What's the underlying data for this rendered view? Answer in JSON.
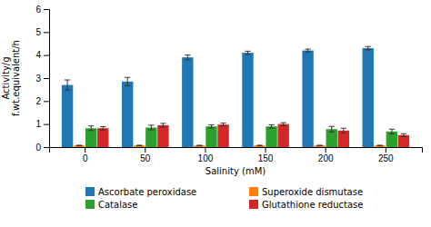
{
  "chart_data": {
    "type": "bar",
    "xlabel": "Salinity (mM)",
    "ylabel": "Activity/g\nf.wt.equivalent/h",
    "categories": [
      "0",
      "50",
      "100",
      "150",
      "200",
      "250"
    ],
    "series": [
      {
        "name": "Ascorbate peroxidase",
        "values": [
          2.7,
          2.85,
          3.9,
          4.1,
          4.2,
          4.3
        ],
        "errors": [
          0.22,
          0.18,
          0.1,
          0.07,
          0.06,
          0.07
        ]
      },
      {
        "name": "Superoxide dismutase",
        "values": [
          0.07,
          0.07,
          0.07,
          0.07,
          0.07,
          0.07
        ],
        "errors": [
          0.01,
          0.01,
          0.01,
          0.01,
          0.01,
          0.01
        ]
      },
      {
        "name": "Catalase",
        "values": [
          0.82,
          0.85,
          0.9,
          0.9,
          0.78,
          0.68
        ],
        "errors": [
          0.1,
          0.1,
          0.07,
          0.07,
          0.12,
          0.1
        ]
      },
      {
        "name": "Glutathione reductase",
        "values": [
          0.82,
          0.95,
          0.98,
          1.0,
          0.72,
          0.52
        ],
        "errors": [
          0.07,
          0.08,
          0.06,
          0.06,
          0.1,
          0.06
        ]
      }
    ],
    "ylim": [
      0,
      6
    ],
    "yticks": [
      0,
      1,
      2,
      3,
      4,
      5,
      6
    ],
    "grid": false,
    "legend": "bottom"
  }
}
